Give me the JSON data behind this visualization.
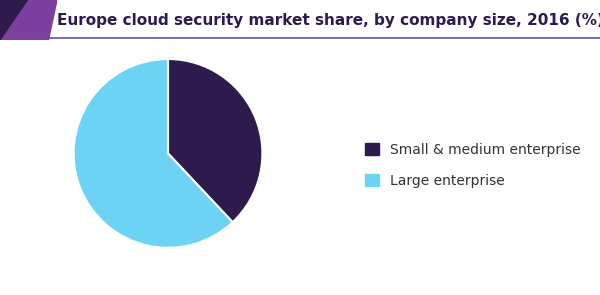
{
  "title": "Europe cloud security market share, by company size, 2016 (%)",
  "slices": [
    38,
    62
  ],
  "labels": [
    "Small & medium enterprise",
    "Large enterprise"
  ],
  "colors": [
    "#2d1b4e",
    "#6dd3f5"
  ],
  "startangle": 90,
  "background_color": "#ffffff",
  "title_color": "#2d1b4e",
  "title_fontsize": 11.0,
  "header_line_color": "#5a5a9e",
  "accent_color_dark": "#2d1b4e",
  "accent_color_purple": "#7b3f9e",
  "legend_fontsize": 10,
  "legend_text_color": "#333333"
}
